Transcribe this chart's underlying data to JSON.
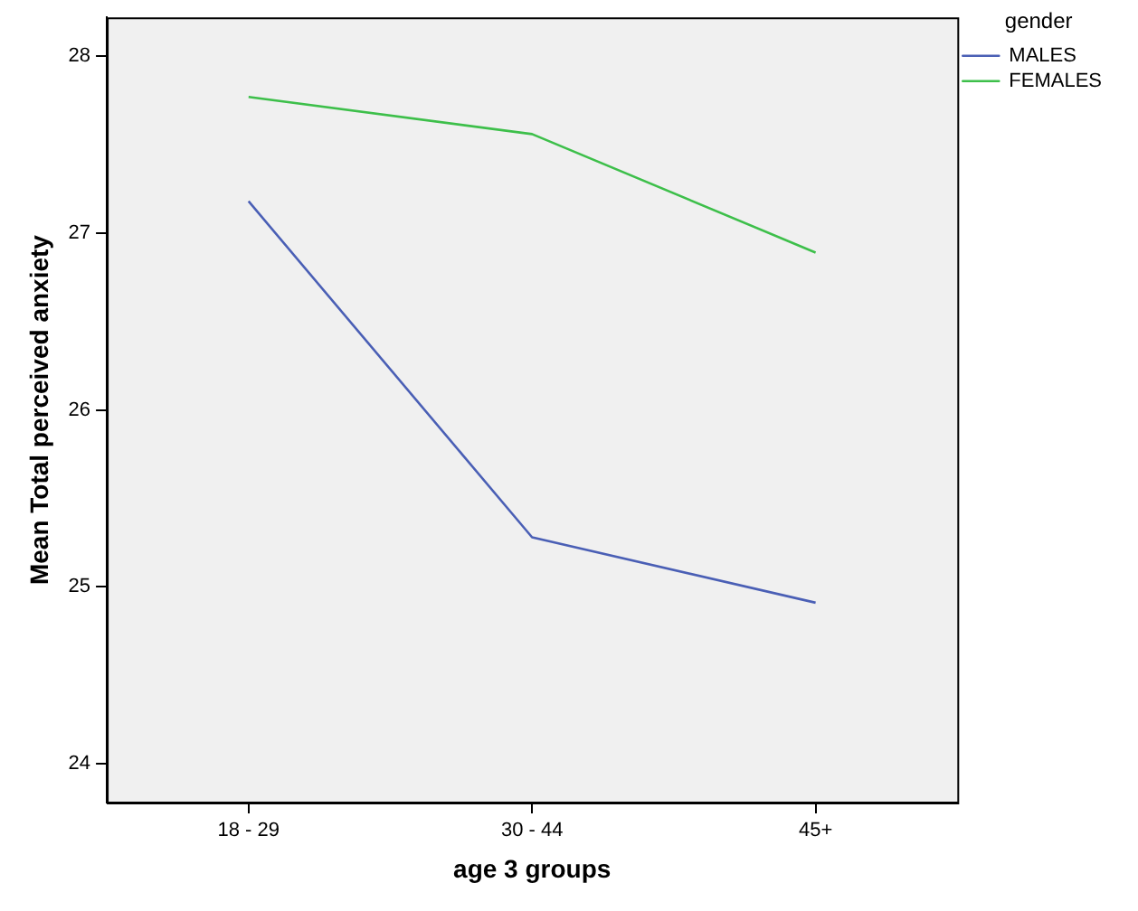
{
  "chart_data": {
    "type": "line",
    "xlabel": "age 3 groups",
    "ylabel": "Mean Total perceived anxiety",
    "legend_title": "gender",
    "categories": [
      "18 - 29",
      "30 - 44",
      "45+"
    ],
    "series": [
      {
        "name": "MALES",
        "color": "#4a5fb5",
        "values": [
          27.18,
          25.28,
          24.91
        ]
      },
      {
        "name": "FEMALES",
        "color": "#3dbf4a",
        "values": [
          27.77,
          27.56,
          26.89
        ]
      }
    ],
    "ylim": [
      23.78,
      28.22
    ],
    "yticks": [
      24,
      25,
      26,
      27,
      28
    ],
    "grid": false,
    "legend": "top right",
    "marker": "none",
    "line_style": "solid"
  }
}
